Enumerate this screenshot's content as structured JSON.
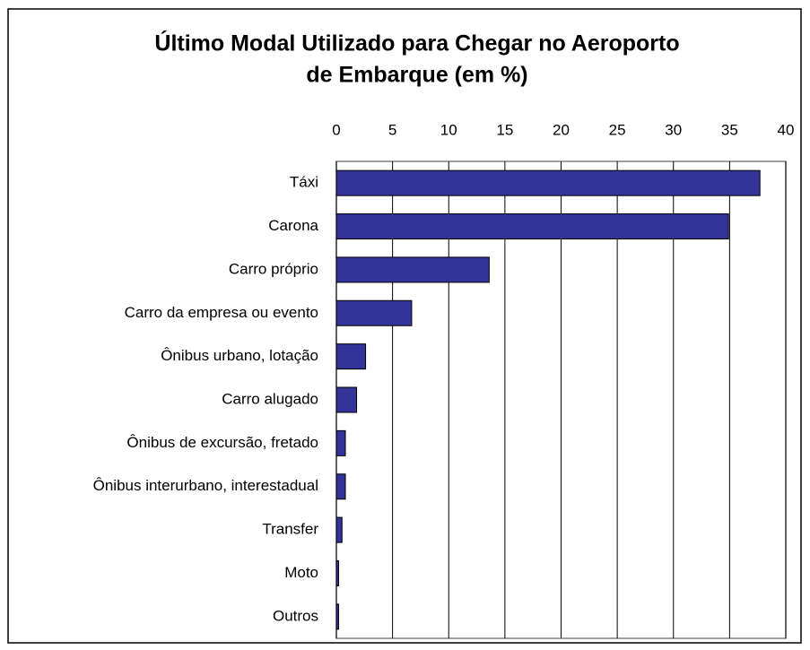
{
  "chart_data": {
    "type": "bar",
    "orientation": "horizontal",
    "title": [
      "Último Modal Utilizado para Chegar no Aeroporto",
      "de Embarque (em %)"
    ],
    "categories": [
      "Táxi",
      "Carona",
      "Carro próprio",
      "Carro da empresa ou evento",
      "Ônibus urbano, lotação",
      "Carro alugado",
      "Ônibus de excursão, fretado",
      "Ônibus interurbano, interestadual",
      "Transfer",
      "Moto",
      "Outros"
    ],
    "values": [
      37.7,
      34.9,
      13.6,
      6.7,
      2.6,
      1.8,
      0.8,
      0.8,
      0.5,
      0.2,
      0.2
    ],
    "color": "#333399",
    "xlim": [
      0,
      40
    ],
    "xticks": [
      0,
      5,
      10,
      15,
      20,
      25,
      30,
      35,
      40
    ],
    "grid": true
  }
}
